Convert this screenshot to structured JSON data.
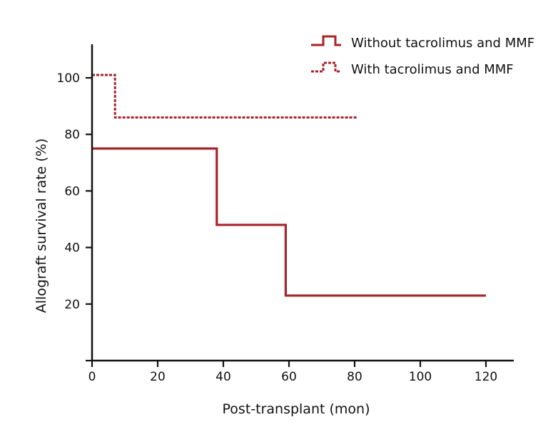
{
  "chart_data": {
    "type": "line",
    "step": true,
    "xlabel": "Post-transplant (mon)",
    "ylabel": "Allograft survival rate (%)",
    "xlim": [
      0,
      128
    ],
    "ylim": [
      0,
      112
    ],
    "x_ticks": [
      0,
      20,
      40,
      60,
      80,
      100,
      120
    ],
    "y_ticks": [
      0,
      20,
      40,
      60,
      80,
      100
    ],
    "grid": false,
    "legend_position": "top-right",
    "series": [
      {
        "name": "Without tacrolimus and MMF",
        "line_style": "solid",
        "color": "#a8232a",
        "x": [
          0,
          38,
          59,
          120
        ],
        "y": [
          75,
          48,
          23,
          23
        ]
      },
      {
        "name": "With tacrolimus and MMF",
        "line_style": "dashed",
        "color": "#a8232a",
        "x": [
          0,
          7,
          81
        ],
        "y": [
          101,
          86,
          86
        ]
      }
    ]
  }
}
